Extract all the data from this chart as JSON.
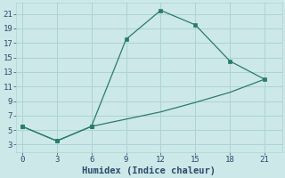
{
  "xlabel": "Humidex (Indice chaleur)",
  "bg_color": "#cde8e8",
  "line_color": "#2a7a6e",
  "x_data": [
    0,
    3,
    6,
    9,
    12,
    15,
    18,
    21
  ],
  "y_upper": [
    5.5,
    3.5,
    5.5,
    17.5,
    21.5,
    19.5,
    14.5,
    12.0
  ],
  "y_lower": [
    5.5,
    3.5,
    5.5,
    6.5,
    7.5,
    8.8,
    10.2,
    12.0
  ],
  "xlim": [
    -0.5,
    22.5
  ],
  "ylim": [
    2.0,
    22.5
  ],
  "xticks": [
    0,
    3,
    6,
    9,
    12,
    15,
    18,
    21
  ],
  "yticks": [
    3,
    5,
    7,
    9,
    11,
    13,
    15,
    17,
    19,
    21
  ],
  "grid_color": "#aad4d4",
  "font_color": "#2a4a6a",
  "tick_fontsize": 6.5,
  "label_fontsize": 7.5,
  "upper_markers": [
    0,
    1,
    2,
    3,
    4,
    5,
    6,
    7
  ],
  "lower_markers": [
    0,
    1,
    2
  ]
}
